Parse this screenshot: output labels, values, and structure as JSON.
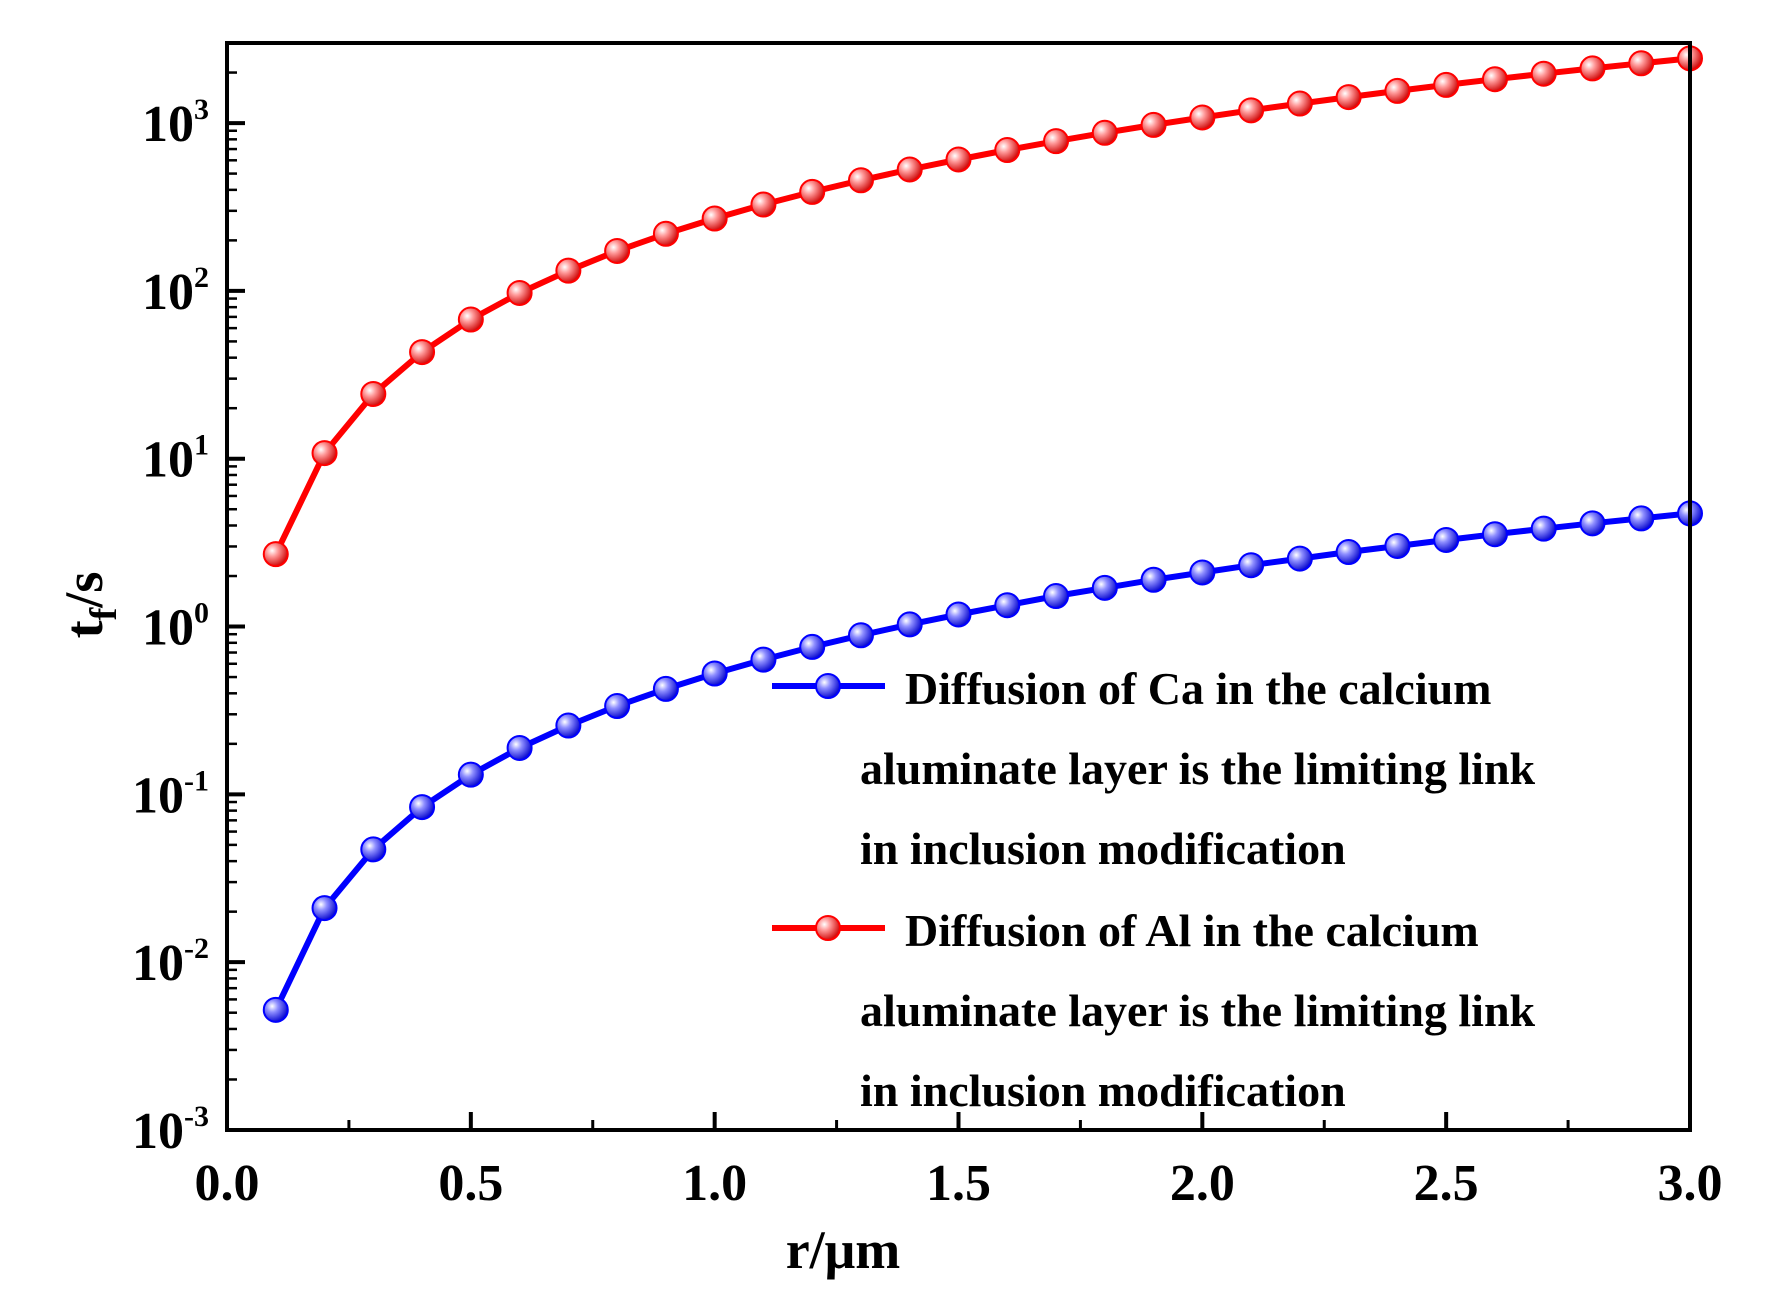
{
  "chart_data": {
    "type": "line",
    "title": "",
    "xlabel": "r/μm",
    "ylabel": {
      "base": "t",
      "subscript": "f",
      "suffix": "/s"
    },
    "xscale": "linear",
    "yscale": "log",
    "xlim": [
      0.0,
      3.0
    ],
    "ylim": [
      0.001,
      3000
    ],
    "xticks": [
      "0.0",
      "0.5",
      "1.0",
      "1.5",
      "2.0",
      "2.5",
      "3.0"
    ],
    "yticks": [
      {
        "base": "10",
        "exp": "-3"
      },
      {
        "base": "10",
        "exp": "-2"
      },
      {
        "base": "10",
        "exp": "-1"
      },
      {
        "base": "10",
        "exp": "0"
      },
      {
        "base": "10",
        "exp": "1"
      },
      {
        "base": "10",
        "exp": "2"
      },
      {
        "base": "10",
        "exp": "3"
      }
    ],
    "grid": false,
    "legend_position": "lower-right",
    "x": [
      0.1,
      0.2,
      0.3,
      0.4,
      0.5,
      0.6,
      0.7,
      0.8,
      0.9,
      1.0,
      1.1,
      1.2,
      1.3,
      1.4,
      1.5,
      1.6,
      1.7,
      1.8,
      1.9,
      2.0,
      2.1,
      2.2,
      2.3,
      2.4,
      2.5,
      2.6,
      2.7,
      2.8,
      2.9,
      3.0
    ],
    "series": [
      {
        "name": "Ca",
        "color": "#0000ff",
        "legend_lines": [
          "Diffusion of Ca in the calcium",
          "aluminate layer is the limiting link",
          " in inclusion modification"
        ],
        "values": [
          0.0052,
          0.021,
          0.047,
          0.084,
          0.131,
          0.189,
          0.257,
          0.336,
          0.425,
          0.525,
          0.635,
          0.756,
          0.887,
          1.03,
          1.18,
          1.34,
          1.52,
          1.7,
          1.9,
          2.1,
          2.32,
          2.54,
          2.78,
          3.02,
          3.28,
          3.55,
          3.83,
          4.12,
          4.41,
          4.72
        ]
      },
      {
        "name": "Al",
        "color": "#ff0000",
        "legend_lines": [
          "Diffusion of Al in the calcium",
          "aluminate layer is the limiting link",
          " in inclusion modification"
        ],
        "values": [
          2.7,
          10.8,
          24.3,
          43.2,
          67.5,
          97.2,
          132,
          173,
          219,
          270,
          327,
          389,
          456,
          529,
          607,
          691,
          780,
          875,
          975,
          1080,
          1191,
          1307,
          1428,
          1555,
          1688,
          1825,
          1968,
          2117,
          2271,
          2430
        ]
      }
    ]
  }
}
